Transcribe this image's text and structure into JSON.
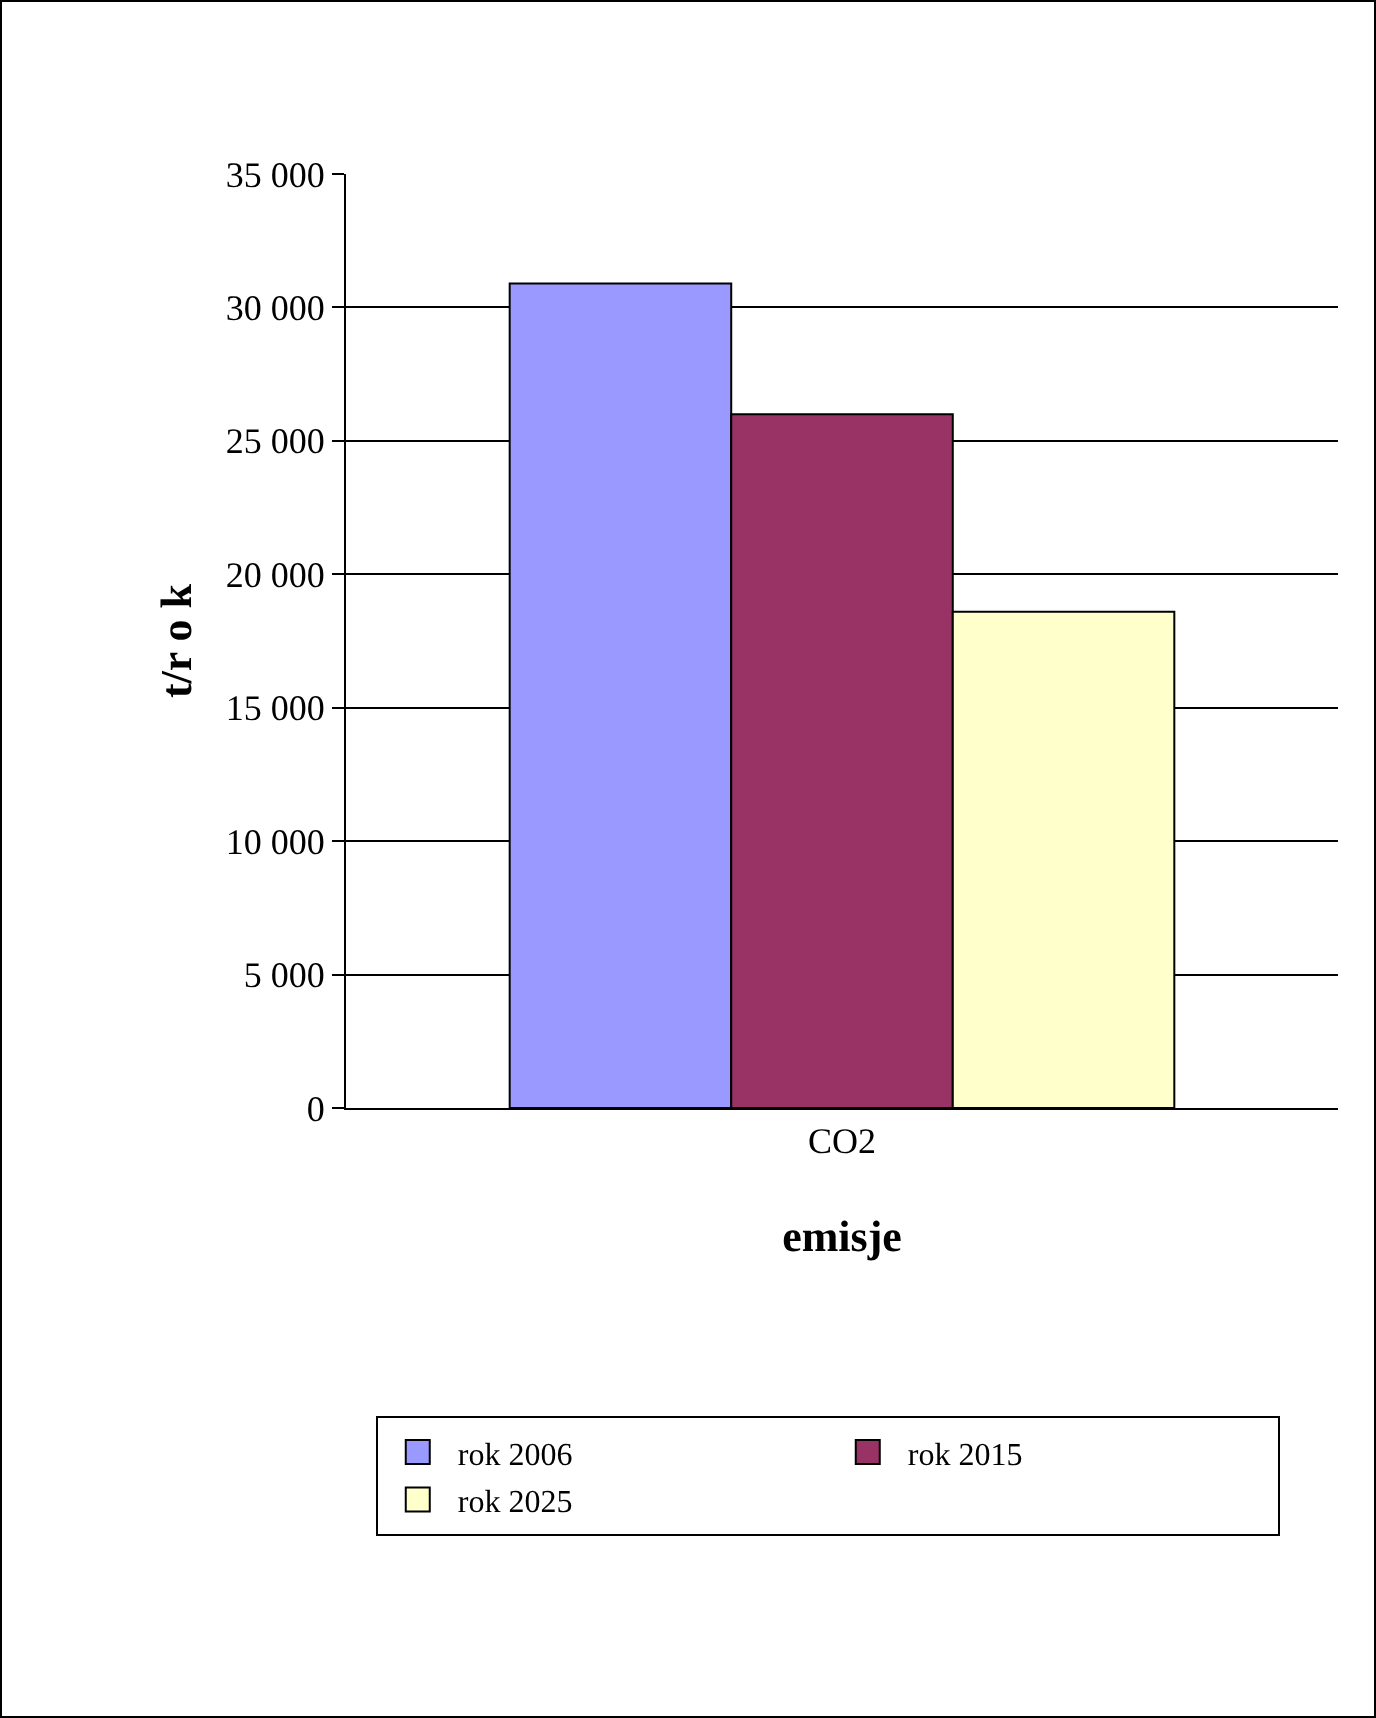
{
  "chart_data": {
    "type": "bar",
    "xlabel": "emisje",
    "ylabel": "t/r o k",
    "categories": [
      "CO2"
    ],
    "series": [
      {
        "name": "rok 2006",
        "color": "#9999ff",
        "values": [
          30900
        ]
      },
      {
        "name": "rok 2015",
        "color": "#993366",
        "values": [
          26000
        ]
      },
      {
        "name": "rok 2025",
        "color": "#ffffcc",
        "values": [
          18600
        ]
      }
    ],
    "ylim": [
      0,
      35000
    ],
    "yticks": [
      {
        "value": 0,
        "label": "0"
      },
      {
        "value": 5000,
        "label": "5 000"
      },
      {
        "value": 10000,
        "label": "10 000"
      },
      {
        "value": 15000,
        "label": "15 000"
      },
      {
        "value": 20000,
        "label": "20 000"
      },
      {
        "value": 25000,
        "label": "25 000"
      },
      {
        "value": 30000,
        "label": "30 000"
      },
      {
        "value": 35000,
        "label": "35 000"
      }
    ],
    "grid": "y",
    "legend": "bottom"
  }
}
